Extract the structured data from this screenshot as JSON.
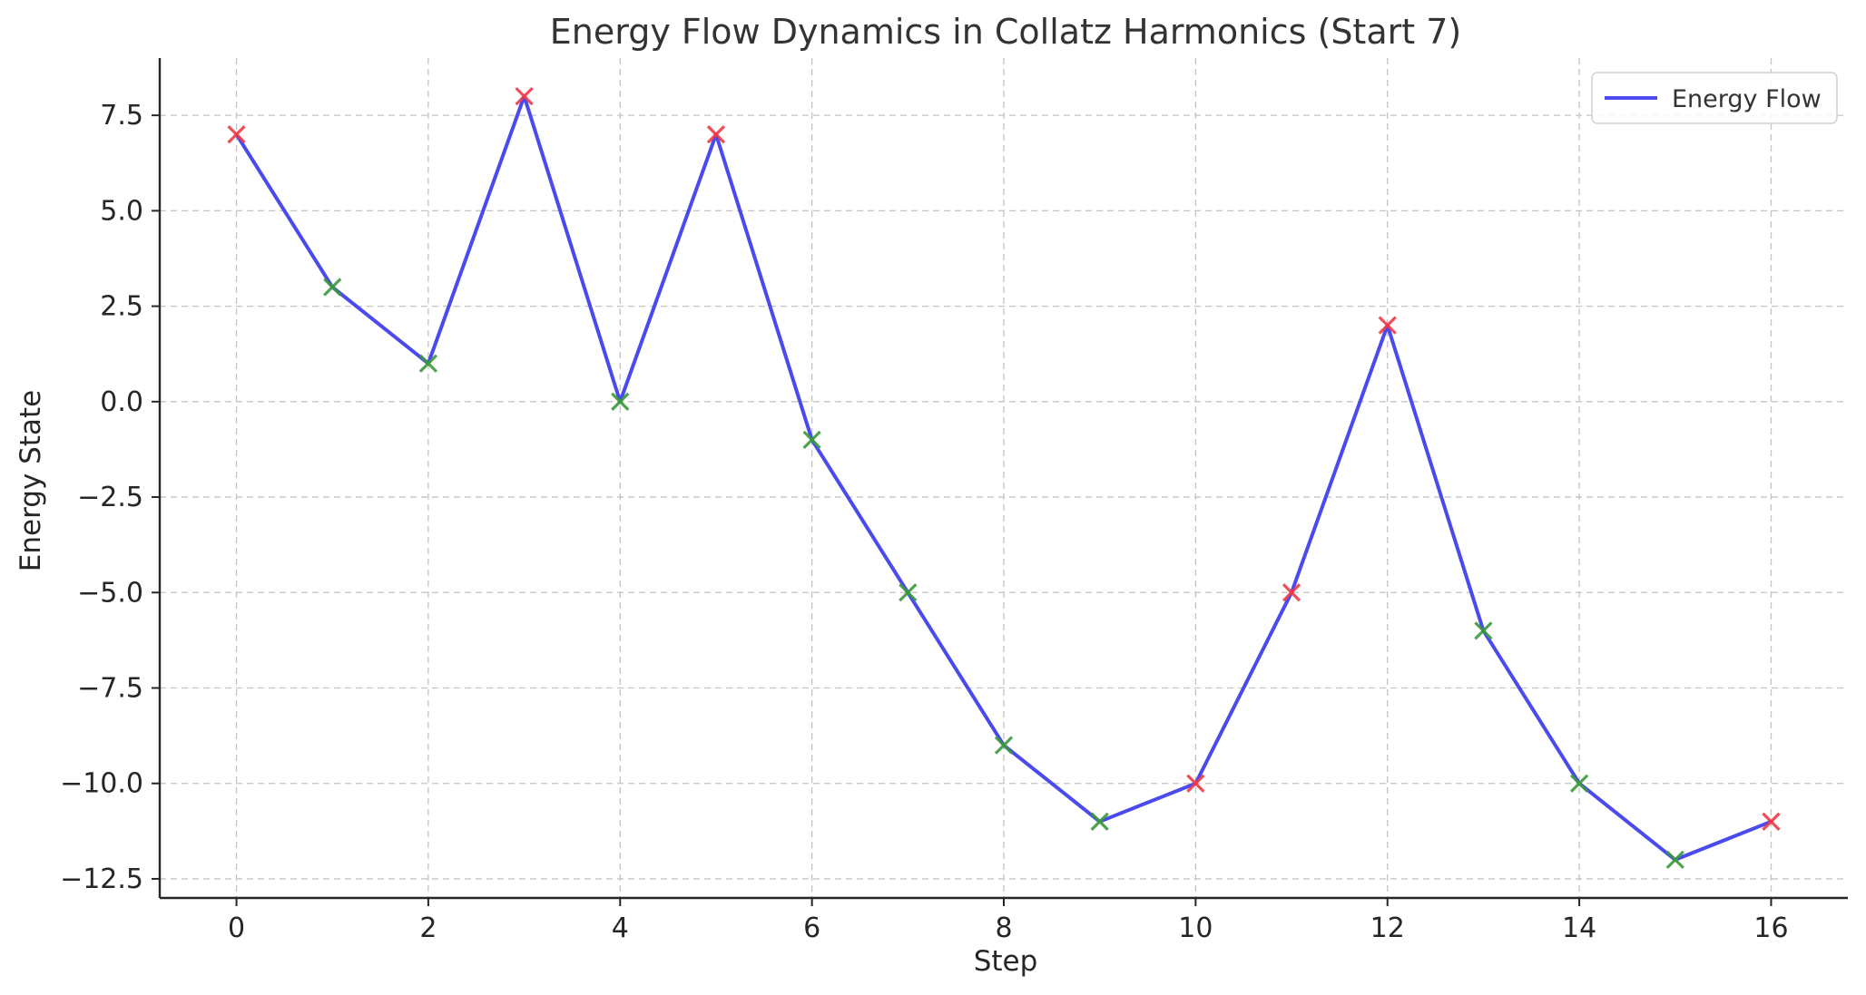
{
  "chart_data": {
    "type": "line",
    "title": "Energy Flow Dynamics in Collatz Harmonics (Start 7)",
    "xlabel": "Step",
    "ylabel": "Energy State",
    "x": [
      0,
      1,
      2,
      3,
      4,
      5,
      6,
      7,
      8,
      9,
      10,
      11,
      12,
      13,
      14,
      15,
      16
    ],
    "series": [
      {
        "name": "Energy Flow",
        "color": "#4a4aee",
        "values": [
          7,
          3,
          1,
          8,
          0,
          7,
          -1,
          -5,
          -9,
          -11,
          -10,
          -5,
          2,
          -6,
          -10,
          -12,
          -11
        ]
      }
    ],
    "marker_colors": [
      "red",
      "green",
      "green",
      "red",
      "green",
      "red",
      "green",
      "green",
      "green",
      "green",
      "red",
      "red",
      "red",
      "green",
      "green",
      "green",
      "red"
    ],
    "marker_palette": {
      "red": "#f03a47",
      "green": "#3a9a3a"
    },
    "xlim": [
      -0.8,
      16.8
    ],
    "ylim": [
      -13.0,
      9.0
    ],
    "xticks": [
      0,
      2,
      4,
      6,
      8,
      10,
      12,
      14,
      16
    ],
    "xtick_labels": [
      "0",
      "2",
      "4",
      "6",
      "8",
      "10",
      "12",
      "14",
      "16"
    ],
    "yticks": [
      7.5,
      5.0,
      2.5,
      0.0,
      -2.5,
      -5.0,
      -7.5,
      -10.0,
      -12.5
    ],
    "ytick_labels": [
      "7.5",
      "5.0",
      "2.5",
      "0.0",
      "−2.5",
      "−5.0",
      "−7.5",
      "−10.0",
      "−12.5"
    ],
    "grid": true,
    "legend": {
      "position": "top-right",
      "entries": [
        "Energy Flow"
      ]
    },
    "marker": "x"
  }
}
